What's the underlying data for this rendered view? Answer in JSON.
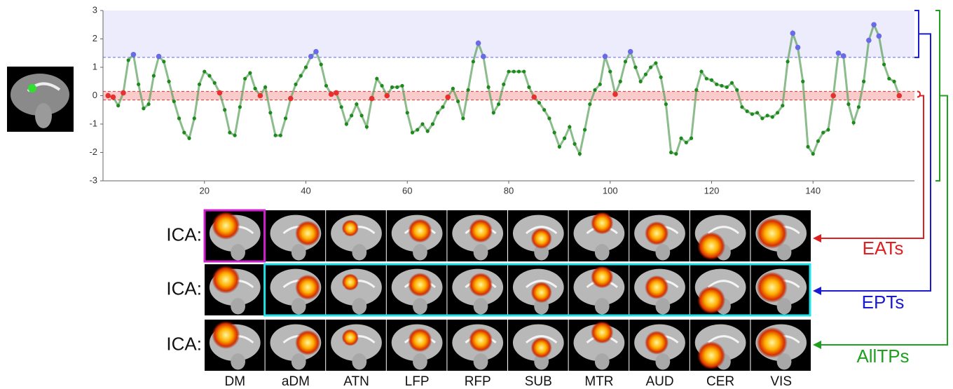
{
  "chart_data": {
    "type": "line",
    "x": [
      1,
      2,
      3,
      4,
      5,
      6,
      7,
      8,
      9,
      10,
      11,
      12,
      13,
      14,
      15,
      16,
      17,
      18,
      19,
      20,
      21,
      22,
      23,
      24,
      25,
      26,
      27,
      28,
      29,
      30,
      31,
      32,
      33,
      34,
      35,
      36,
      37,
      38,
      39,
      40,
      41,
      42,
      43,
      44,
      45,
      46,
      47,
      48,
      49,
      50,
      51,
      52,
      53,
      54,
      55,
      56,
      57,
      58,
      59,
      60,
      61,
      62,
      63,
      64,
      65,
      66,
      67,
      68,
      69,
      70,
      71,
      72,
      73,
      74,
      75,
      76,
      77,
      78,
      79,
      80,
      81,
      82,
      83,
      84,
      85,
      86,
      87,
      88,
      89,
      90,
      91,
      92,
      93,
      94,
      95,
      96,
      97,
      98,
      99,
      100,
      101,
      102,
      103,
      104,
      105,
      106,
      107,
      108,
      109,
      110,
      111,
      112,
      113,
      114,
      115,
      116,
      117,
      118,
      119,
      120,
      121,
      122,
      123,
      124,
      125,
      126,
      127,
      128,
      129,
      130,
      131,
      132,
      133,
      134,
      135,
      136,
      137,
      138,
      139,
      140,
      141,
      142,
      143,
      144,
      145,
      146,
      147,
      148,
      149,
      150,
      151,
      152,
      153,
      154,
      155,
      156,
      157
    ],
    "series": [
      {
        "color": "#5aa05a",
        "values": [
          0.0,
          -0.05,
          -0.35,
          0.1,
          1.25,
          1.45,
          0.4,
          -0.45,
          -0.3,
          0.7,
          1.38,
          1.2,
          0.5,
          -0.2,
          -0.8,
          -1.3,
          -1.5,
          -0.8,
          0.4,
          0.85,
          0.7,
          0.45,
          0.1,
          -0.5,
          -1.3,
          -1.4,
          -0.4,
          0.6,
          0.8,
          0.25,
          0.0,
          0.3,
          -0.6,
          -1.4,
          -1.4,
          -0.8,
          -0.1,
          0.4,
          0.7,
          1.0,
          1.38,
          1.55,
          1.1,
          0.35,
          0.05,
          0.1,
          -0.4,
          -1.0,
          -0.7,
          -0.3,
          -0.7,
          -1.1,
          -0.1,
          0.6,
          0.35,
          0.0,
          0.3,
          0.3,
          0.35,
          -0.6,
          -1.3,
          -1.2,
          -1.0,
          -1.25,
          -1.0,
          -0.6,
          -0.4,
          -0.05,
          0.25,
          -0.2,
          -0.8,
          0.2,
          1.2,
          1.85,
          1.38,
          0.3,
          -0.6,
          -0.3,
          0.4,
          0.85,
          0.85,
          0.85,
          0.85,
          0.3,
          -0.05,
          -0.25,
          -0.5,
          -0.8,
          -1.3,
          -1.8,
          -1.5,
          -1.1,
          -1.7,
          -2.05,
          -1.2,
          -0.3,
          0.2,
          0.4,
          1.38,
          0.85,
          0.05,
          0.5,
          1.2,
          1.55,
          1.0,
          0.5,
          0.75,
          1.0,
          1.15,
          0.65,
          -0.3,
          -2.0,
          -2.05,
          -1.5,
          -1.65,
          -1.5,
          0.2,
          0.85,
          0.6,
          0.55,
          0.4,
          0.35,
          0.3,
          0.45,
          0.2,
          -0.4,
          -0.55,
          -0.65,
          -0.6,
          -0.8,
          -0.7,
          -0.75,
          -0.6,
          -0.35,
          1.2,
          2.2,
          1.7,
          0.5,
          -1.8,
          -2.05,
          -1.6,
          -1.3,
          -1.2,
          0.0,
          1.5,
          1.4,
          -0.3,
          -0.95,
          -0.4,
          0.5,
          1.95,
          2.5,
          2.1,
          1.1,
          0.6,
          0.5,
          0.0
        ]
      }
    ],
    "upper_threshold": 1.35,
    "upper_color": "#6a6ae8",
    "band": [
      -0.15,
      0.15
    ],
    "band_color": "#e83030",
    "point_color": "#1e8a1e",
    "xlim": [
      0,
      160
    ],
    "ylim": [
      -3,
      3
    ],
    "xticks": [
      20,
      40,
      60,
      80,
      100,
      120,
      140
    ],
    "yticks": [
      -3,
      -2,
      -1,
      0,
      1,
      2,
      3
    ]
  },
  "rows": [
    "ICA:",
    "ICA:",
    "ICA:"
  ],
  "networks": [
    "DM",
    "aDM",
    "ATN",
    "LFP",
    "RFP",
    "SUB",
    "MTR",
    "AUD",
    "CER",
    "VIS"
  ],
  "labels": [
    {
      "text": "EATs",
      "color": "#e02020"
    },
    {
      "text": "EPTs",
      "color": "#1a1ad0"
    },
    {
      "text": "AllTPs",
      "color": "#20a020"
    }
  ]
}
